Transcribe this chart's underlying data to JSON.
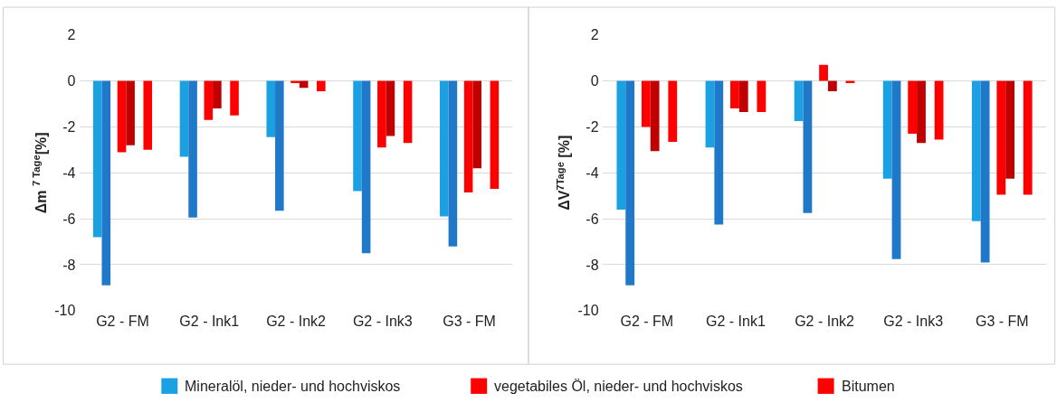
{
  "chart_data": [
    {
      "type": "bar",
      "ylabel": "Δm $^{7 Tage}$[%]",
      "categories": [
        "G2 - FM",
        "G2 - Ink1",
        "G2 - Ink2",
        "G2 - Ink3",
        "G3 - FM"
      ],
      "ylim": [
        -10,
        2
      ],
      "yticks": [
        -10,
        -8,
        -6,
        -4,
        -2,
        0,
        2
      ],
      "grid": "y",
      "legend": "bottom",
      "series": [
        {
          "name": "Mineralöl, nieder- und hochviskos",
          "color": "#1ba1e2",
          "values": [
            -6.8,
            -3.3,
            -2.45,
            -4.8,
            -5.9
          ]
        },
        {
          "color": "#1f78c8",
          "values": [
            -8.9,
            -5.95,
            -5.65,
            -7.5,
            -7.2
          ]
        },
        {
          "name": "vegetabiles Öl, nieder- und hochviskos",
          "color": "#ff0000",
          "values": [
            -3.1,
            -1.7,
            -0.1,
            -2.9,
            -4.85
          ]
        },
        {
          "color": "#c00000",
          "values": [
            -2.8,
            -1.2,
            -0.3,
            -2.4,
            -3.8
          ]
        },
        {
          "name": "Bitumen",
          "color": "#ff0000",
          "values": [
            -3.0,
            -1.5,
            -0.45,
            -2.7,
            -4.7
          ]
        }
      ]
    },
    {
      "type": "bar",
      "ylabel": "ΔV$^{7Tage}$ [%]",
      "categories": [
        "G2 - FM",
        "G2 - Ink1",
        "G2 - Ink2",
        "G2 - Ink3",
        "G3 - FM"
      ],
      "ylim": [
        -10,
        2
      ],
      "yticks": [
        -10,
        -8,
        -6,
        -4,
        -2,
        0,
        2
      ],
      "grid": "y",
      "series": [
        {
          "color": "#1ba1e2",
          "values": [
            -5.6,
            -2.9,
            -1.75,
            -4.25,
            -6.1
          ]
        },
        {
          "color": "#1f78c8",
          "values": [
            -8.9,
            -6.25,
            -5.75,
            -7.75,
            -7.9
          ]
        },
        {
          "color": "#ff0000",
          "values": [
            -2.0,
            -1.2,
            0.7,
            -2.3,
            -4.95
          ]
        },
        {
          "color": "#c00000",
          "values": [
            -3.05,
            -1.35,
            -0.45,
            -2.7,
            -4.25
          ]
        },
        {
          "color": "#ff0000",
          "values": [
            -2.65,
            -1.35,
            -0.1,
            -2.55,
            -4.95
          ]
        }
      ]
    }
  ]
}
